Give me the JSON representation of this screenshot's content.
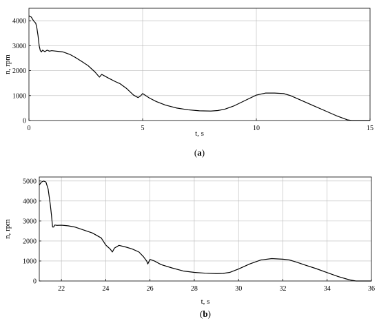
{
  "chart_data": [
    {
      "type": "line",
      "caption_open": "(",
      "caption_letter": "a",
      "caption_close": ")",
      "xlabel": "t, s",
      "ylabel": "n, rpm",
      "xlim": [
        0,
        15
      ],
      "ylim": [
        0,
        4500
      ],
      "xticks": [
        0,
        5,
        10,
        15
      ],
      "yticks": [
        0,
        1000,
        2000,
        3000,
        4000
      ],
      "grid": true,
      "series": [
        {
          "x": [
            0,
            0.1,
            0.2,
            0.3,
            0.35,
            0.4,
            0.45,
            0.5,
            0.55,
            0.6,
            0.7,
            0.8,
            0.9,
            1.0,
            1.2,
            1.5,
            1.8,
            2.0,
            2.3,
            2.6,
            2.9,
            3.1,
            3.2,
            3.3,
            3.5,
            3.8,
            4.0,
            4.3,
            4.6,
            4.8,
            4.9,
            5.0,
            5.1,
            5.3,
            5.6,
            6.0,
            6.5,
            7.0,
            7.5,
            8.0,
            8.3,
            8.6,
            9.0,
            9.5,
            10.0,
            10.4,
            10.8,
            11.2,
            11.5,
            12.0,
            12.5,
            13.0,
            13.5,
            14.0,
            14.2,
            14.4,
            15.0
          ],
          "y": [
            4200,
            4150,
            4000,
            3900,
            3700,
            3400,
            3000,
            2800,
            2750,
            2820,
            2760,
            2820,
            2780,
            2800,
            2780,
            2750,
            2650,
            2550,
            2380,
            2200,
            1950,
            1740,
            1850,
            1800,
            1700,
            1560,
            1480,
            1280,
            1020,
            920,
            980,
            1080,
            1020,
            900,
            760,
            620,
            500,
            430,
            390,
            380,
            400,
            450,
            580,
            800,
            1020,
            1100,
            1100,
            1080,
            1000,
            800,
            600,
            400,
            200,
            30,
            0,
            0,
            0
          ]
        }
      ]
    },
    {
      "type": "line",
      "caption_open": "(",
      "caption_letter": "b",
      "caption_close": ")",
      "xlabel": "t, s",
      "ylabel": "n, rpm",
      "xlim": [
        21,
        36
      ],
      "ylim": [
        0,
        5200
      ],
      "xticks": [
        22,
        24,
        26,
        28,
        30,
        32,
        34,
        36
      ],
      "yticks": [
        0,
        1000,
        2000,
        3000,
        4000,
        5000
      ],
      "grid": true,
      "series": [
        {
          "x": [
            21.0,
            21.1,
            21.2,
            21.3,
            21.4,
            21.45,
            21.5,
            21.55,
            21.6,
            21.65,
            21.7,
            21.8,
            22.0,
            22.3,
            22.6,
            23.0,
            23.4,
            23.8,
            24.0,
            24.1,
            24.2,
            24.3,
            24.4,
            24.6,
            24.9,
            25.2,
            25.5,
            25.7,
            25.85,
            25.9,
            26.0,
            26.2,
            26.5,
            27.0,
            27.5,
            28.0,
            28.5,
            29.0,
            29.3,
            29.6,
            30.0,
            30.5,
            31.0,
            31.5,
            32.0,
            32.3,
            32.6,
            33.0,
            33.5,
            34.0,
            34.5,
            35.0,
            35.3,
            35.5,
            36.0
          ],
          "y": [
            4800,
            4950,
            5000,
            4950,
            4600,
            4200,
            3800,
            3300,
            2700,
            2700,
            2800,
            2780,
            2790,
            2760,
            2700,
            2550,
            2400,
            2150,
            1800,
            1700,
            1600,
            1450,
            1650,
            1780,
            1700,
            1600,
            1450,
            1220,
            1000,
            850,
            1080,
            1000,
            820,
            650,
            500,
            430,
            390,
            370,
            380,
            430,
            600,
            850,
            1050,
            1120,
            1090,
            1050,
            950,
            800,
            620,
            420,
            220,
            60,
            0,
            0,
            0
          ]
        }
      ]
    }
  ]
}
